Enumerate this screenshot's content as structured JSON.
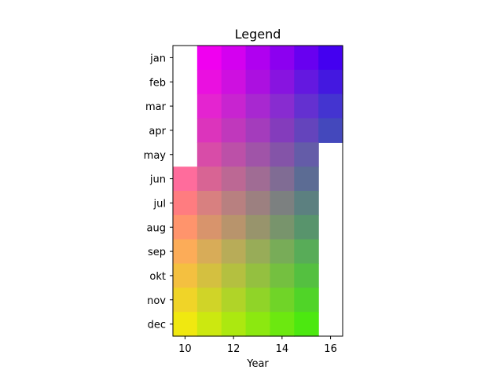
{
  "chart_data": {
    "type": "heatmap",
    "title": "Legend",
    "xlabel": "Year",
    "ylabel": "",
    "x_columns": [
      10,
      11,
      12,
      13,
      14,
      15,
      16
    ],
    "xlim": [
      9.5,
      16.5
    ],
    "x_ticks": [
      "10",
      "12",
      "14",
      "16"
    ],
    "x_tick_values": [
      10,
      12,
      14,
      16
    ],
    "rows": [
      "jan",
      "feb",
      "mar",
      "apr",
      "may",
      "jun",
      "jul",
      "aug",
      "sep",
      "okt",
      "nov",
      "dec"
    ],
    "cells": [
      [
        null,
        "#F000F0",
        "#D400F0",
        "#B000F0",
        "#8C00F0",
        "#6800F0",
        "#4400F0"
      ],
      [
        null,
        "#EA10E0",
        "#CE10E0",
        "#AC10E0",
        "#8814E0",
        "#6418E0",
        "#4418E0"
      ],
      [
        null,
        "#E424D0",
        "#C824D0",
        "#A828D0",
        "#882CD0",
        "#6430D0",
        "#4434D0"
      ],
      [
        null,
        "#DC34BC",
        "#C038BC",
        "#A43CBC",
        "#843CBC",
        "#6444BC",
        "#4448BC"
      ],
      [
        null,
        "#D84CA8",
        "#BC50A8",
        "#A054A8",
        "#8454A8",
        "#645CA8",
        null
      ],
      [
        "#FF6C9C",
        "#D86494",
        "#BC6894",
        "#A06C94",
        "#806C94",
        "#5C6C94",
        null
      ],
      [
        "#FF7C80",
        "#D88080",
        "#B88080",
        "#9C8080",
        "#7C8080",
        "#5C8080",
        null
      ],
      [
        "#FF946C",
        "#D8946C",
        "#B8946C",
        "#98946C",
        "#78946C",
        "#58946C",
        null
      ],
      [
        "#FCAC58",
        "#D8AC58",
        "#B8AC58",
        "#98AC58",
        "#78AC58",
        "#58AC58",
        null
      ],
      [
        "#F4C040",
        "#D4C040",
        "#B4C040",
        "#94C040",
        "#74C040",
        "#54C040",
        null
      ],
      [
        "#F0D428",
        "#D0D428",
        "#B0D428",
        "#90D428",
        "#70D428",
        "#50D428",
        null
      ],
      [
        "#F0E810",
        "#CCE810",
        "#ACE810",
        "#8CE810",
        "#6CE810",
        "#4CE810",
        null
      ]
    ],
    "grid": false,
    "legend": "none"
  }
}
